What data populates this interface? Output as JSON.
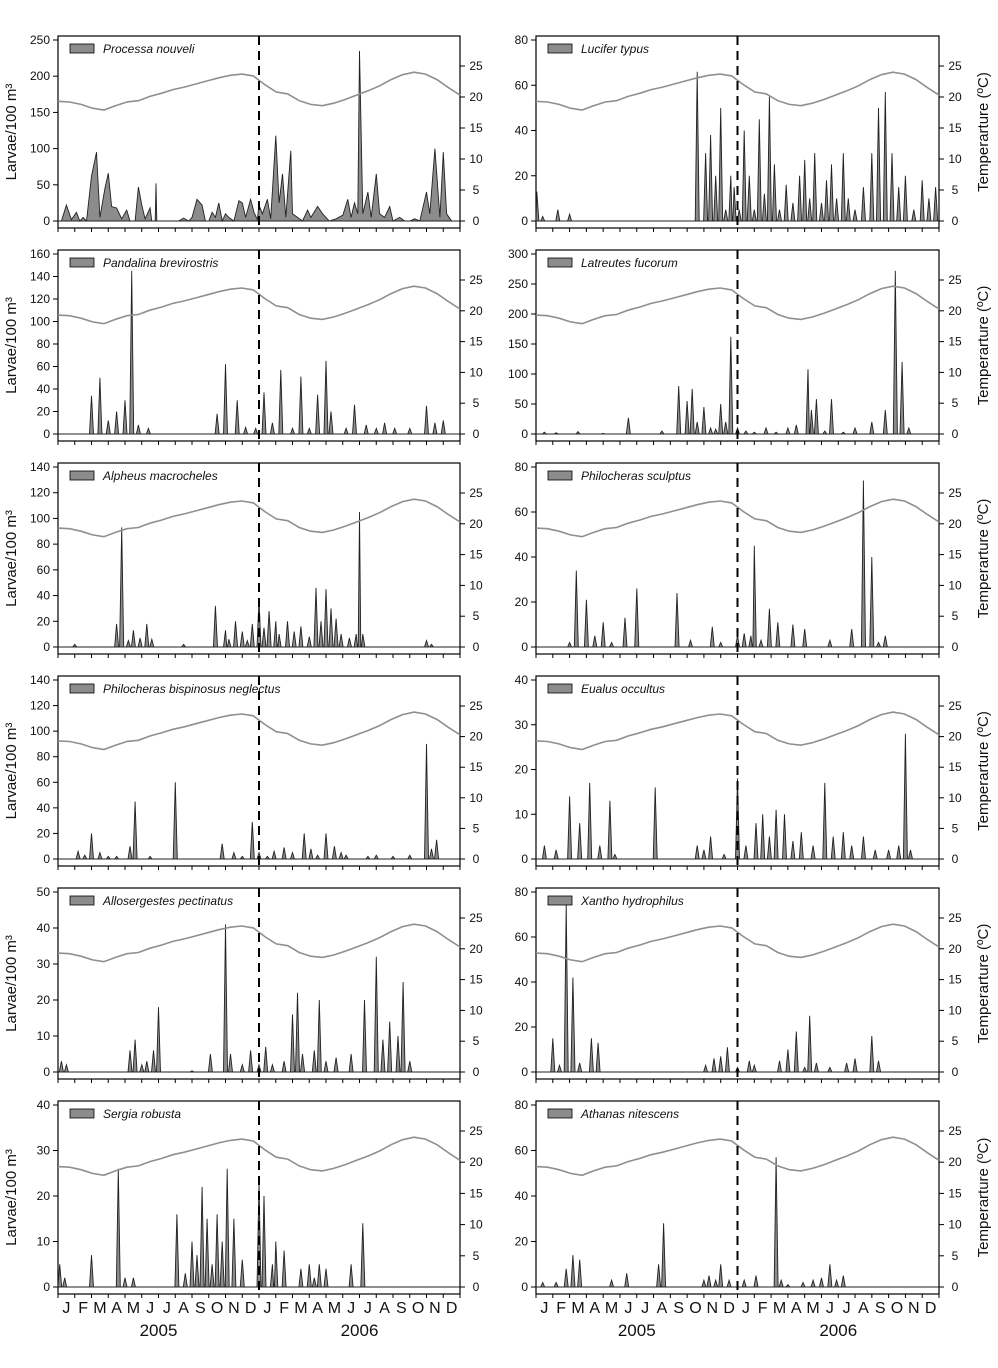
{
  "figure": {
    "months": [
      "J",
      "F",
      "M",
      "A",
      "M",
      "J",
      "J",
      "A",
      "S",
      "O",
      "N",
      "D",
      "J",
      "F",
      "M",
      "A",
      "M",
      "J",
      "J",
      "A",
      "S",
      "O",
      "N",
      "D"
    ],
    "years": [
      "2005",
      "2006"
    ],
    "left_ylabel": "Larvae/100 m³",
    "right_ylabel": "Temperarture (ºC)",
    "colors": {
      "area": "#8c8c8c",
      "temperature": "#8f8f8f",
      "divider": "#000000"
    }
  },
  "chart_data": [
    {
      "type": "area",
      "series_name": "Processa nouveli",
      "ylim": [
        0,
        250
      ],
      "yticks": [
        0,
        50,
        100,
        150,
        200,
        250
      ],
      "temp_ylim": [
        -1,
        27
      ],
      "temp_ticks": [
        0,
        5,
        10,
        15,
        20,
        25
      ],
      "x": [
        0,
        0.2,
        0.35,
        0.5,
        0.65,
        0.8,
        0.95,
        1.1,
        1.3,
        1.5,
        1.7,
        1.85,
        2,
        2.15,
        2.3,
        2.45,
        2.6,
        2.75,
        2.9,
        3.1,
        3.3,
        3.5,
        3.7,
        3.85,
        4,
        4.15,
        4.3,
        4.45,
        4.6,
        4.75,
        4.9,
        5.05,
        5.2,
        5.35,
        5.5,
        5.65,
        5.8,
        6,
        6.15,
        6.3,
        6.45,
        6.6,
        6.75,
        6.9,
        7.05,
        7.2,
        7.35,
        7.5,
        7.7,
        7.9,
        8.1,
        8.3,
        8.5,
        8.7,
        8.9,
        9.1,
        9.3,
        9.5,
        9.65,
        9.8,
        10,
        10.2,
        10.4,
        10.55,
        10.7,
        10.85,
        11,
        11.15,
        11.3,
        11.45,
        11.6,
        11.75,
        11.9,
        12,
        12.15,
        12.3,
        12.45,
        12.6,
        12.75,
        12.9,
        13.05,
        13.2,
        13.35,
        13.5,
        13.65,
        13.8,
        13.95,
        14.1,
        14.25,
        14.4,
        14.55,
        14.7,
        14.85,
        15,
        15.2,
        15.4,
        15.6,
        15.8,
        16,
        16.2,
        16.4,
        16.6,
        16.8,
        17,
        17.2,
        17.4,
        17.6,
        17.8,
        18,
        18.2,
        18.4,
        18.55,
        18.7,
        18.85,
        19,
        19.2,
        19.4,
        19.6,
        19.8,
        20,
        20.2,
        20.4,
        20.6,
        20.8,
        21,
        21.2,
        21.4,
        21.6,
        21.8,
        22,
        22.2,
        22.4,
        22.6,
        22.8,
        23,
        23.2,
        23.35,
        23.5,
        23.65,
        23.8,
        24
      ],
      "values": [
        0,
        0,
        2,
        22,
        18,
        3,
        2,
        12,
        2,
        4,
        0,
        0,
        55,
        95,
        10,
        40,
        65,
        18,
        5,
        15,
        10,
        0,
        5,
        14,
        0,
        0,
        0,
        0,
        0,
        45,
        30,
        12,
        0,
        0,
        0,
        0,
        50,
        0,
        0,
        0,
        0,
        0,
        0,
        0,
        0,
        0,
        0,
        0,
        0,
        0,
        0,
        0,
        0,
        0,
        0,
        0,
        0,
        0,
        0,
        0,
        0,
        0,
        0,
        0,
        0,
        0,
        0,
        0,
        0,
        0,
        0,
        0,
        0,
        0,
        0,
        0,
        0,
        0,
        0,
        0,
        0,
        0,
        0,
        0,
        0,
        0,
        0,
        0,
        0,
        0,
        0,
        0,
        0,
        0,
        0,
        0,
        0,
        0,
        0,
        0,
        0,
        0,
        0,
        0,
        0,
        0,
        0,
        0,
        0,
        0,
        0,
        0,
        0,
        0,
        0,
        0,
        0,
        0,
        0,
        0,
        0,
        0,
        0,
        0,
        0,
        0,
        0,
        0,
        0,
        0,
        0,
        0,
        0,
        0,
        0,
        0,
        0,
        0,
        0,
        0,
        0
      ],
      "temp": [
        20,
        20,
        19.5,
        19,
        18.5,
        18.5,
        19.2,
        19.8,
        20.5,
        21.5,
        22.5,
        23,
        23.2,
        23.6,
        23.9,
        24,
        22.5,
        21.3,
        20.5,
        20,
        19.5,
        19,
        19,
        19.3,
        19.8,
        20.5,
        21.5,
        22,
        22.5,
        23.4,
        24.3,
        24,
        23,
        21.5,
        20.5,
        19.8
      ]
    }
  ]
}
